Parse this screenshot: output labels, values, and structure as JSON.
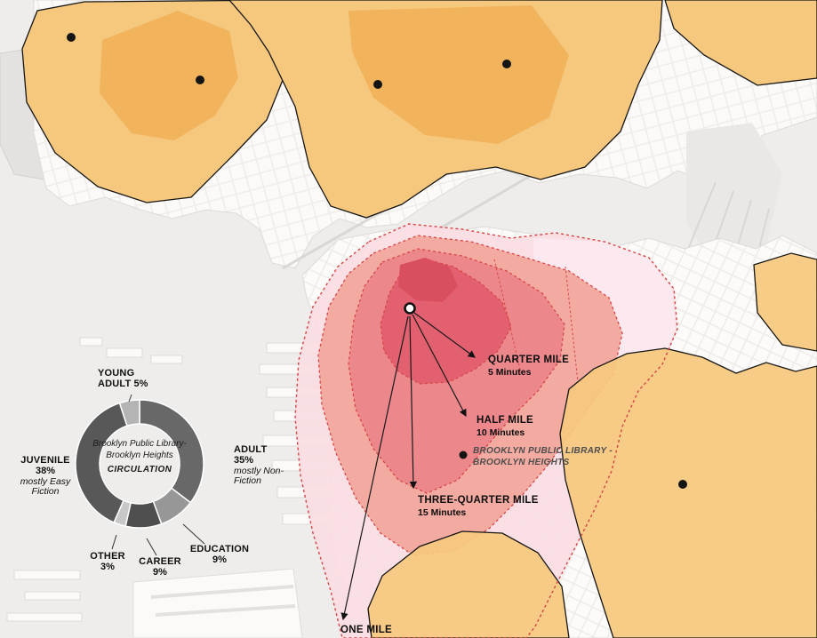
{
  "map": {
    "marker_label": "BROOKLYN PUBLIC LIBRARY -\nBROOKLYN HEIGHTS",
    "walkshed_labels": [
      {
        "title": "QUARTER MILE",
        "subtitle": "5 Minutes"
      },
      {
        "title": "HALF MILE",
        "subtitle": "10 Minutes"
      },
      {
        "title": "THREE-QUARTER MILE",
        "subtitle": "15 Minutes"
      },
      {
        "title": "ONE MILE",
        "subtitle": ""
      }
    ],
    "colors": {
      "service_area": "#f6c87e",
      "service_area_dark": "#f1b35c",
      "quarter_mile": "#e2606f",
      "quarter_mile_dark": "#d94f60",
      "half_mile": "#ec888c",
      "three_quarter_mile": "#f2a79c",
      "one_mile": "#fadce2",
      "one_mile_pale": "#fce9ef",
      "walkshed_border": "#d64545"
    }
  },
  "chart_data": {
    "type": "pie",
    "title": "Brooklyn Public Library - Brooklyn Heights Circulation",
    "center_lines": "Brooklyn Public Library-\nBrooklyn Heights",
    "center_caption": "CIRCULATION",
    "start_angle_deg": -90,
    "direction": "clockwise",
    "segments": [
      {
        "label": "ADULT",
        "value": 35,
        "pct": "35%",
        "note": "mostly Non-Fiction",
        "color": "#686868"
      },
      {
        "label": "EDUCATION",
        "value": 9,
        "pct": "9%",
        "note": "",
        "color": "#979797"
      },
      {
        "label": "CAREER",
        "value": 9,
        "pct": "9%",
        "note": "",
        "color": "#4f4f4f"
      },
      {
        "label": "OTHER",
        "value": 3,
        "pct": "3%",
        "note": "",
        "color": "#c8c8c8"
      },
      {
        "label": "JUVENILE",
        "value": 38,
        "pct": "38%",
        "note": "mostly Easy Fiction",
        "color": "#585858"
      },
      {
        "label": "YOUNG ADULT",
        "value": 5,
        "pct": "5%",
        "note": "",
        "color": "#b4b4b4"
      }
    ]
  }
}
